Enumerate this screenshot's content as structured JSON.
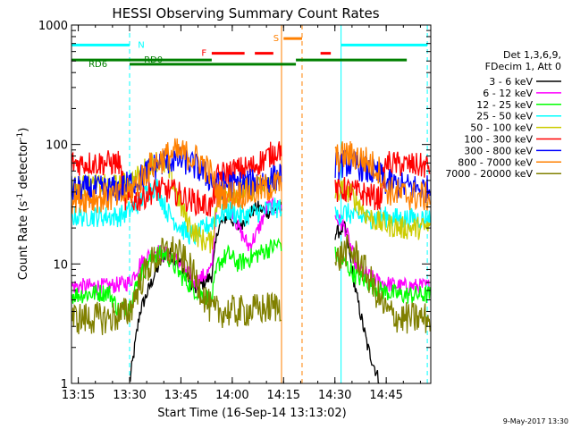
{
  "chart_data": {
    "type": "line",
    "title": "HESSI Observing Summary Count Rates",
    "xlabel": "Start Time (16-Sep-14 13:13:02)",
    "ylabel_main": "Count Rate (s",
    "ylabel_sup1": "-1",
    "ylabel_mid": " detector",
    "ylabel_sup2": "-1",
    "ylabel_end": ")",
    "y_scale": "log",
    "ylim": [
      1,
      1000
    ],
    "xlim_min": [
      13.217,
      14.967
    ],
    "x_ticks": [
      {
        "t": 13.25,
        "label": "13:15"
      },
      {
        "t": 13.5,
        "label": "13:30"
      },
      {
        "t": 13.75,
        "label": "13:45"
      },
      {
        "t": 14.0,
        "label": "14:00"
      },
      {
        "t": 14.25,
        "label": "14:15"
      },
      {
        "t": 14.5,
        "label": "14:30"
      },
      {
        "t": 14.75,
        "label": "14:45"
      }
    ],
    "y_ticks": [
      {
        "v": 1,
        "label": "1"
      },
      {
        "v": 10,
        "label": "10"
      },
      {
        "v": 100,
        "label": "100"
      },
      {
        "v": 1000,
        "label": "1000"
      }
    ],
    "legend": {
      "header1": "Det 1,3,6,9,",
      "header2": "FDecim 1, Att 0",
      "position": "right"
    },
    "series": [
      {
        "name": "3 - 6 keV",
        "color": "#000000",
        "points": [
          [
            13.5,
            1
          ],
          [
            13.55,
            4
          ],
          [
            13.62,
            8
          ],
          [
            13.68,
            13
          ],
          [
            13.75,
            10
          ],
          [
            13.82,
            6
          ],
          [
            13.9,
            8
          ],
          [
            13.93,
            20
          ],
          [
            13.98,
            26
          ],
          [
            14.03,
            20
          ],
          [
            14.08,
            26
          ],
          [
            14.12,
            30
          ],
          [
            14.17,
            27
          ],
          [
            14.24,
            30
          ],
          [
            14.5,
            18
          ],
          [
            14.55,
            20
          ],
          [
            14.6,
            6
          ],
          [
            14.66,
            2
          ],
          [
            14.72,
            1
          ]
        ]
      },
      {
        "name": "6 - 12 keV",
        "color": "#ff00ff",
        "points": [
          [
            13.217,
            6.5
          ],
          [
            13.4,
            6.5
          ],
          [
            13.5,
            7
          ],
          [
            13.55,
            10
          ],
          [
            13.62,
            13
          ],
          [
            13.68,
            12
          ],
          [
            13.75,
            10
          ],
          [
            13.82,
            7
          ],
          [
            13.9,
            9
          ],
          [
            13.93,
            45
          ],
          [
            13.98,
            35
          ],
          [
            14.03,
            20
          ],
          [
            14.08,
            14
          ],
          [
            14.12,
            18
          ],
          [
            14.17,
            30
          ],
          [
            14.24,
            30
          ],
          [
            14.5,
            25
          ],
          [
            14.55,
            20
          ],
          [
            14.6,
            10
          ],
          [
            14.66,
            8
          ],
          [
            14.72,
            7
          ],
          [
            14.82,
            6.5
          ],
          [
            14.967,
            6.5
          ]
        ]
      },
      {
        "name": "12 - 25 keV",
        "color": "#00ff00",
        "points": [
          [
            13.217,
            5.5
          ],
          [
            13.4,
            5.8
          ],
          [
            13.45,
            4
          ],
          [
            13.5,
            4.5
          ],
          [
            13.55,
            8
          ],
          [
            13.62,
            12
          ],
          [
            13.68,
            12
          ],
          [
            13.75,
            8
          ],
          [
            13.82,
            6
          ],
          [
            13.9,
            5
          ],
          [
            13.93,
            10
          ],
          [
            13.98,
            12
          ],
          [
            14.03,
            10
          ],
          [
            14.12,
            12
          ],
          [
            14.24,
            15
          ],
          [
            14.5,
            12
          ],
          [
            14.55,
            10
          ],
          [
            14.6,
            8
          ],
          [
            14.66,
            7
          ],
          [
            14.72,
            6
          ],
          [
            14.82,
            5.5
          ],
          [
            14.967,
            5.5
          ]
        ]
      },
      {
        "name": "25 - 50 keV",
        "color": "#00ffff",
        "points": [
          [
            13.217,
            25
          ],
          [
            13.45,
            25
          ],
          [
            13.5,
            28
          ],
          [
            13.55,
            33
          ],
          [
            13.58,
            40
          ],
          [
            13.63,
            45
          ],
          [
            13.68,
            28
          ],
          [
            13.73,
            22
          ],
          [
            13.78,
            18
          ],
          [
            13.82,
            17
          ],
          [
            13.93,
            25
          ],
          [
            13.98,
            28
          ],
          [
            14.05,
            25
          ],
          [
            14.12,
            27
          ],
          [
            14.24,
            30
          ],
          [
            14.5,
            25
          ],
          [
            14.55,
            27
          ],
          [
            14.6,
            25
          ],
          [
            14.66,
            24
          ],
          [
            14.72,
            25
          ],
          [
            14.82,
            24
          ],
          [
            14.967,
            24
          ]
        ]
      },
      {
        "name": "50 - 100 keV",
        "color": "#cccc00",
        "points": [
          [
            13.217,
            45
          ],
          [
            13.45,
            45
          ],
          [
            13.5,
            48
          ],
          [
            13.55,
            55
          ],
          [
            13.6,
            70
          ],
          [
            13.65,
            75
          ],
          [
            13.7,
            55
          ],
          [
            13.75,
            30
          ],
          [
            13.8,
            20
          ],
          [
            13.85,
            16
          ],
          [
            13.9,
            15
          ],
          [
            13.93,
            38
          ],
          [
            14.0,
            40
          ],
          [
            14.1,
            42
          ],
          [
            14.24,
            50
          ],
          [
            14.5,
            40
          ],
          [
            14.55,
            42
          ],
          [
            14.6,
            35
          ],
          [
            14.66,
            25
          ],
          [
            14.72,
            22
          ],
          [
            14.82,
            20
          ],
          [
            14.967,
            20
          ]
        ]
      },
      {
        "name": "100 - 300 keV",
        "color": "#ff0000",
        "points": [
          [
            13.217,
            70
          ],
          [
            13.45,
            70
          ],
          [
            13.48,
            33
          ],
          [
            13.55,
            35
          ],
          [
            13.6,
            40
          ],
          [
            13.65,
            42
          ],
          [
            13.72,
            40
          ],
          [
            13.78,
            35
          ],
          [
            13.85,
            32
          ],
          [
            13.9,
            30
          ],
          [
            13.93,
            55
          ],
          [
            14.0,
            60
          ],
          [
            14.1,
            65
          ],
          [
            14.24,
            95
          ],
          [
            14.5,
            40
          ],
          [
            14.55,
            42
          ],
          [
            14.6,
            40
          ],
          [
            14.66,
            38
          ],
          [
            14.72,
            35
          ],
          [
            14.75,
            70
          ],
          [
            14.82,
            68
          ],
          [
            14.967,
            65
          ]
        ]
      },
      {
        "name": "300 - 800 keV",
        "color": "#0000ff",
        "points": [
          [
            13.217,
            42
          ],
          [
            13.45,
            42
          ],
          [
            13.5,
            47
          ],
          [
            13.55,
            52
          ],
          [
            13.6,
            62
          ],
          [
            13.65,
            70
          ],
          [
            13.72,
            75
          ],
          [
            13.78,
            72
          ],
          [
            13.85,
            60
          ],
          [
            13.9,
            50
          ],
          [
            13.93,
            45
          ],
          [
            14.0,
            46
          ],
          [
            14.1,
            48
          ],
          [
            14.2,
            52
          ],
          [
            14.24,
            55
          ],
          [
            14.5,
            65
          ],
          [
            14.55,
            70
          ],
          [
            14.6,
            68
          ],
          [
            14.66,
            60
          ],
          [
            14.72,
            55
          ],
          [
            14.75,
            48
          ],
          [
            14.82,
            45
          ],
          [
            14.967,
            42
          ]
        ]
      },
      {
        "name": "800 - 7000 keV",
        "color": "#ff8000",
        "points": [
          [
            13.217,
            36
          ],
          [
            13.45,
            36
          ],
          [
            13.5,
            40
          ],
          [
            13.55,
            50
          ],
          [
            13.6,
            65
          ],
          [
            13.65,
            75
          ],
          [
            13.72,
            85
          ],
          [
            13.78,
            82
          ],
          [
            13.85,
            72
          ],
          [
            13.9,
            55
          ],
          [
            13.93,
            38
          ],
          [
            14.0,
            38
          ],
          [
            14.1,
            40
          ],
          [
            14.2,
            45
          ],
          [
            14.24,
            48
          ],
          [
            14.5,
            75
          ],
          [
            14.55,
            82
          ],
          [
            14.6,
            80
          ],
          [
            14.66,
            72
          ],
          [
            14.72,
            60
          ],
          [
            14.75,
            42
          ],
          [
            14.82,
            38
          ],
          [
            14.967,
            36
          ]
        ]
      },
      {
        "name": "7000 - 20000 keV",
        "color": "#808000",
        "points": [
          [
            13.217,
            3.5
          ],
          [
            13.4,
            3.5
          ],
          [
            13.5,
            4
          ],
          [
            13.55,
            7
          ],
          [
            13.6,
            10
          ],
          [
            13.65,
            12
          ],
          [
            13.72,
            13
          ],
          [
            13.78,
            10
          ],
          [
            13.85,
            6
          ],
          [
            13.9,
            4
          ],
          [
            13.93,
            4
          ],
          [
            14.05,
            4
          ],
          [
            14.15,
            4.2
          ],
          [
            14.24,
            4.5
          ],
          [
            14.5,
            10
          ],
          [
            14.55,
            13
          ],
          [
            14.6,
            12
          ],
          [
            14.66,
            8
          ],
          [
            14.72,
            5
          ],
          [
            14.75,
            4
          ],
          [
            14.82,
            3.5
          ],
          [
            14.967,
            3.5
          ]
        ]
      }
    ],
    "flags": [
      {
        "label": "N",
        "color": "#00ffff",
        "level": 680,
        "segments": [
          [
            13.217,
            13.5
          ],
          [
            14.53,
            14.95
          ]
        ],
        "label_t": 13.54
      },
      {
        "label": "S",
        "color": "#ff8000",
        "level": 770,
        "segments": [
          [
            14.25,
            14.34
          ]
        ],
        "label_t": 14.2
      },
      {
        "label": "F",
        "color": "#ff0000",
        "level": 580,
        "segments": [
          [
            13.9,
            14.06
          ],
          [
            14.11,
            14.2
          ],
          [
            14.43,
            14.48
          ]
        ],
        "label_t": 13.85
      },
      {
        "label": "RD0",
        "color": "#008000",
        "level": 510,
        "segments": [
          [
            13.217,
            13.9
          ],
          [
            14.31,
            14.85
          ]
        ],
        "label_t": 13.57
      },
      {
        "label": "RD6",
        "color": "#008000",
        "level": 470,
        "segments": [
          [
            13.5,
            14.31
          ]
        ],
        "label_t": 13.3
      }
    ],
    "vertical_markers": [
      {
        "t": 13.217,
        "color": "#00ffff",
        "style": "solid"
      },
      {
        "t": 13.5,
        "color": "#00ffff",
        "style": "dashed"
      },
      {
        "t": 14.24,
        "color": "#ff8000",
        "style": "solid"
      },
      {
        "t": 14.34,
        "color": "#ff8000",
        "style": "dashed"
      },
      {
        "t": 14.53,
        "color": "#00ffff",
        "style": "solid"
      },
      {
        "t": 14.95,
        "color": "#00ffff",
        "style": "dashed"
      }
    ],
    "gaps": [
      [
        14.24,
        14.5
      ]
    ]
  },
  "footer": {
    "date_stamp": "9-May-2017 13:30"
  }
}
